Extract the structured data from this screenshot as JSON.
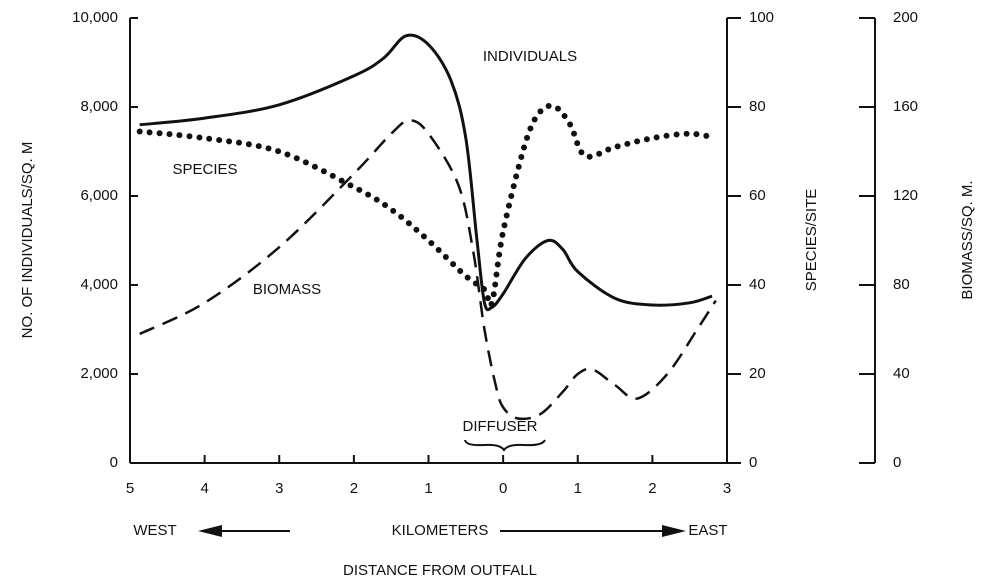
{
  "chart_data": {
    "type": "line",
    "xlabel": "DISTANCE FROM OUTFALL",
    "ylabel": "NO. OF INDIVIDUALS/SQ. M",
    "y2label": "SPECIES/SITE",
    "y3label": "BIOMASS/SQ. M.",
    "annotations": [
      "DIFFUSER",
      "WEST",
      "KILOMETERS",
      "EAST"
    ],
    "xlim": [
      -5,
      3
    ],
    "xticks": [
      {
        "value": -5,
        "label": "5"
      },
      {
        "value": -4,
        "label": "4"
      },
      {
        "value": -3,
        "label": "3"
      },
      {
        "value": -2,
        "label": "2"
      },
      {
        "value": -1,
        "label": "1"
      },
      0,
      1,
      2,
      3
    ],
    "ylim": [
      0,
      10000
    ],
    "yticks": [
      0,
      {
        "value": 2000,
        "label": "2,000"
      },
      {
        "value": 4000,
        "label": "4,000"
      },
      {
        "value": 6000,
        "label": "6,000"
      },
      {
        "value": 8000,
        "label": "8,000"
      },
      {
        "value": 10000,
        "label": "10,000"
      }
    ],
    "y2lim": [
      0,
      100
    ],
    "y2ticks": [
      0,
      20,
      40,
      60,
      80,
      100
    ],
    "y3lim": [
      0,
      200
    ],
    "y3ticks": [
      0,
      40,
      80,
      120,
      160,
      200
    ],
    "series": [
      {
        "name": "INDIVIDUALS",
        "color": "#111111",
        "style": "solid",
        "axis": "y",
        "x": [
          -4.87,
          -4,
          -3,
          -2,
          -1.6,
          -1.3,
          -1,
          -0.7,
          -0.5,
          -0.35,
          -0.25,
          -0.15,
          0,
          0.3,
          0.6,
          0.8,
          1,
          1.5,
          2,
          2.5,
          2.8
        ],
        "values": [
          7600,
          7750,
          8050,
          8700,
          9100,
          9600,
          9400,
          8600,
          7300,
          5000,
          3600,
          3500,
          3800,
          4600,
          5000,
          4800,
          4300,
          3700,
          3550,
          3600,
          3750
        ]
      },
      {
        "name": "SPECIES",
        "color": "#111111",
        "style": "dotted",
        "axis": "y2",
        "x": [
          -4.87,
          -4,
          -3,
          -2,
          -1.5,
          -1,
          -0.5,
          -0.25,
          -0.15,
          0,
          0.3,
          0.5,
          0.7,
          0.9,
          1.1,
          1.5,
          2,
          2.5,
          2.85
        ],
        "values": [
          74.5,
          73,
          70,
          62,
          57,
          50,
          42,
          39,
          36,
          52,
          72,
          79,
          80,
          76,
          69,
          71,
          73,
          74,
          73
        ]
      },
      {
        "name": "BIOMASS",
        "color": "#111111",
        "style": "dashed",
        "axis": "y3",
        "x": [
          -4.87,
          -4,
          -3,
          -2,
          -1.5,
          -1.25,
          -1,
          -0.6,
          -0.4,
          -0.25,
          -0.1,
          0,
          0.2,
          0.5,
          0.8,
          1,
          1.2,
          1.5,
          1.8,
          2.2,
          2.6,
          2.85
        ],
        "values": [
          58,
          72,
          97,
          130,
          148,
          154,
          148,
          125,
          95,
          60,
          35,
          25,
          20,
          22,
          32,
          40,
          42,
          35,
          29,
          40,
          60,
          73
        ]
      }
    ]
  }
}
